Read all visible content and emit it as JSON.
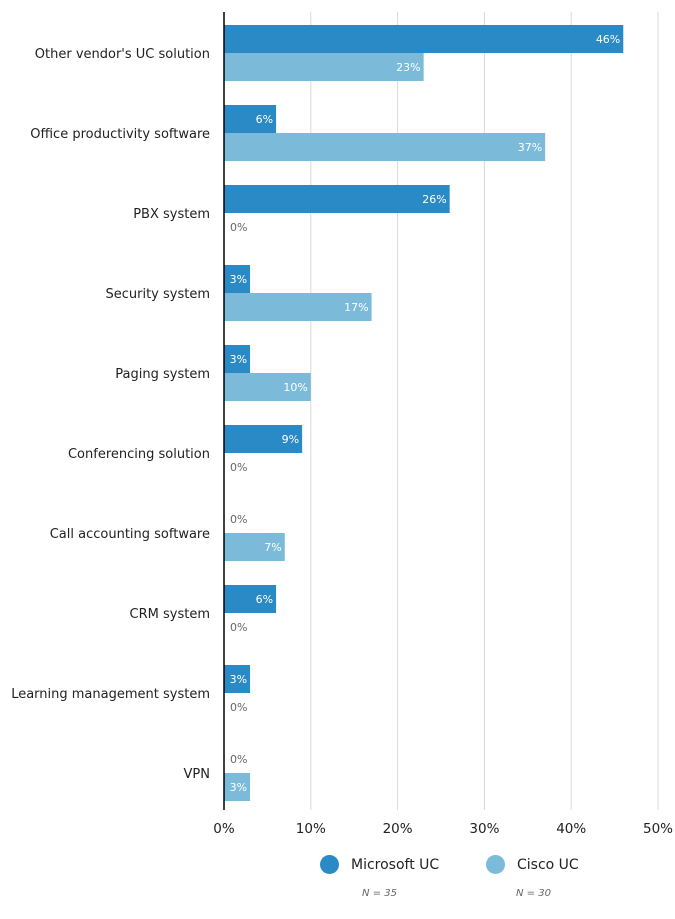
{
  "chart_data": {
    "type": "bar",
    "orientation": "horizontal",
    "title": "",
    "xlabel": "",
    "ylabel": "",
    "categories": [
      "Other vendor's UC solution",
      "Office productivity software",
      "PBX system",
      "Security system",
      "Paging system",
      "Conferencing solution",
      "Call accounting software",
      "CRM system",
      "Learning management system",
      "VPN"
    ],
    "series": [
      {
        "name": "Microsoft UC",
        "color": "#2a8ac6",
        "n_label": "N = 35",
        "values": [
          46,
          6,
          26,
          3,
          3,
          9,
          0,
          6,
          3,
          0
        ]
      },
      {
        "name": "Cisco UC",
        "color": "#7bbad9",
        "n_label": "N = 30",
        "values": [
          23,
          37,
          0,
          17,
          10,
          0,
          7,
          0,
          0,
          3
        ]
      }
    ],
    "xlim": [
      0,
      50
    ],
    "xticks": [
      "0%",
      "10%",
      "20%",
      "30%",
      "40%",
      "50%"
    ],
    "value_suffix": "%",
    "grid": true,
    "legend_position": "bottom"
  }
}
